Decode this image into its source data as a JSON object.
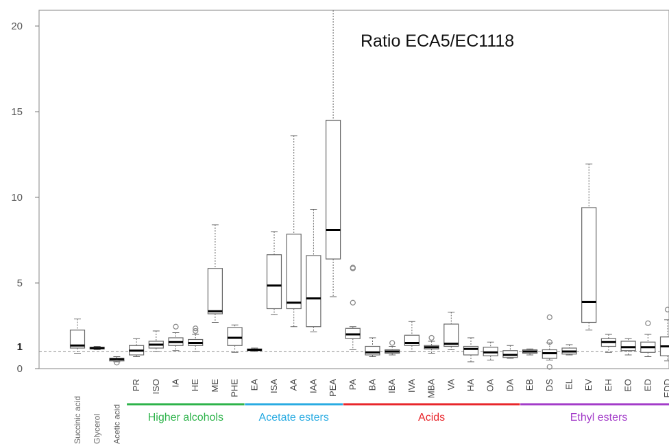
{
  "chart_data": {
    "type": "box",
    "title": "Ratio ECA5/EC1118",
    "ylim": [
      0,
      21
    ],
    "y_ticks": [
      0,
      5,
      10,
      15,
      20
    ],
    "y_tick_labels": [
      "0",
      "5",
      "10",
      "15",
      "20"
    ],
    "reference": {
      "value": 1,
      "label": "1"
    },
    "categories": [
      "Succinic acid",
      "Glycerol",
      "Acetic acid",
      "PR",
      "ISO",
      "IA",
      "HE",
      "ME",
      "PHE",
      "EA",
      "ISA",
      "AA",
      "IAA",
      "PEA",
      "PA",
      "BA",
      "IBA",
      "IVA",
      "MBA",
      "VA",
      "HA",
      "OA",
      "DA",
      "EB",
      "DS",
      "EL",
      "EV",
      "EH",
      "EO",
      "ED",
      "EDD"
    ],
    "boxes": [
      {
        "min": 0.9,
        "q1": 1.2,
        "median": 1.35,
        "q3": 2.25,
        "max": 2.9,
        "outliers": []
      },
      {
        "min": 1.1,
        "q1": 1.15,
        "median": 1.2,
        "q3": 1.25,
        "max": 1.3,
        "outliers": []
      },
      {
        "min": 0.4,
        "q1": 0.45,
        "median": 0.55,
        "q3": 0.6,
        "max": 0.7,
        "outliers": [
          0.35
        ]
      },
      {
        "min": 0.7,
        "q1": 0.8,
        "median": 1.05,
        "q3": 1.35,
        "max": 1.75,
        "outliers": []
      },
      {
        "min": 1.0,
        "q1": 1.2,
        "median": 1.4,
        "q3": 1.6,
        "max": 2.2,
        "outliers": []
      },
      {
        "min": 1.05,
        "q1": 1.35,
        "median": 1.55,
        "q3": 1.8,
        "max": 2.1,
        "outliers": [
          2.45
        ]
      },
      {
        "min": 1.0,
        "q1": 1.35,
        "median": 1.5,
        "q3": 1.7,
        "max": 2.0,
        "outliers": [
          2.2,
          2.35
        ]
      },
      {
        "min": 2.7,
        "q1": 3.2,
        "median": 3.35,
        "q3": 5.85,
        "max": 8.4,
        "outliers": []
      },
      {
        "min": 0.95,
        "q1": 1.35,
        "median": 1.8,
        "q3": 2.4,
        "max": 2.55,
        "outliers": []
      },
      {
        "min": 1.0,
        "q1": 1.05,
        "median": 1.1,
        "q3": 1.15,
        "max": 1.2,
        "outliers": []
      },
      {
        "min": 3.15,
        "q1": 3.5,
        "median": 4.85,
        "q3": 6.65,
        "max": 8.0,
        "outliers": []
      },
      {
        "min": 2.45,
        "q1": 3.5,
        "median": 3.85,
        "q3": 7.85,
        "max": 13.6,
        "outliers": []
      },
      {
        "min": 2.15,
        "q1": 2.45,
        "median": 4.1,
        "q3": 6.6,
        "max": 9.3,
        "outliers": []
      },
      {
        "min": 4.2,
        "q1": 6.4,
        "median": 8.1,
        "q3": 14.5,
        "max": 21.0,
        "outliers": []
      },
      {
        "min": 1.1,
        "q1": 1.75,
        "median": 2.0,
        "q3": 2.35,
        "max": 2.45,
        "outliers": [
          3.85,
          5.85,
          5.9
        ]
      },
      {
        "min": 0.7,
        "q1": 0.8,
        "median": 0.95,
        "q3": 1.3,
        "max": 1.8,
        "outliers": []
      },
      {
        "min": 0.8,
        "q1": 0.9,
        "median": 1.0,
        "q3": 1.1,
        "max": 1.3,
        "outliers": [
          1.5
        ]
      },
      {
        "min": 1.0,
        "q1": 1.35,
        "median": 1.5,
        "q3": 1.95,
        "max": 2.75,
        "outliers": []
      },
      {
        "min": 0.9,
        "q1": 1.15,
        "median": 1.25,
        "q3": 1.35,
        "max": 1.6,
        "outliers": [
          1.8
        ]
      },
      {
        "min": 1.1,
        "q1": 1.3,
        "median": 1.45,
        "q3": 2.6,
        "max": 3.3,
        "outliers": []
      },
      {
        "min": 0.4,
        "q1": 0.8,
        "median": 1.15,
        "q3": 1.3,
        "max": 1.8,
        "outliers": []
      },
      {
        "min": 0.5,
        "q1": 0.75,
        "median": 0.95,
        "q3": 1.25,
        "max": 1.55,
        "outliers": []
      },
      {
        "min": 0.6,
        "q1": 0.65,
        "median": 0.8,
        "q3": 1.05,
        "max": 1.35,
        "outliers": []
      },
      {
        "min": 0.8,
        "q1": 0.9,
        "median": 1.0,
        "q3": 1.1,
        "max": 1.15,
        "outliers": []
      },
      {
        "min": 0.5,
        "q1": 0.6,
        "median": 0.9,
        "q3": 1.1,
        "max": 1.5,
        "outliers": [
          0.1,
          1.55,
          3.0
        ]
      },
      {
        "min": 0.8,
        "q1": 0.85,
        "median": 1.0,
        "q3": 1.2,
        "max": 1.4,
        "outliers": []
      },
      {
        "min": 2.25,
        "q1": 2.7,
        "median": 3.9,
        "q3": 9.4,
        "max": 11.95,
        "outliers": []
      },
      {
        "min": 0.95,
        "q1": 1.3,
        "median": 1.55,
        "q3": 1.75,
        "max": 2.0,
        "outliers": []
      },
      {
        "min": 0.8,
        "q1": 1.05,
        "median": 1.25,
        "q3": 1.6,
        "max": 1.75,
        "outliers": []
      },
      {
        "min": 0.7,
        "q1": 0.95,
        "median": 1.25,
        "q3": 1.55,
        "max": 2.0,
        "outliers": [
          2.65
        ]
      },
      {
        "min": 0.45,
        "q1": 0.75,
        "median": 1.3,
        "q3": 1.85,
        "max": 2.85,
        "outliers": [
          3.45
        ]
      }
    ],
    "groups": [
      {
        "name": "Higher alcohols",
        "from": 3,
        "to": 8,
        "color": "#2db34a"
      },
      {
        "name": "Acetate esters",
        "from": 9,
        "to": 13,
        "color": "#29abe2"
      },
      {
        "name": "Acids",
        "from": 14,
        "to": 22,
        "color": "#e8262b"
      },
      {
        "name": "Ethyl esters",
        "from": 23,
        "to": 30,
        "color": "#a33cc9"
      }
    ]
  }
}
